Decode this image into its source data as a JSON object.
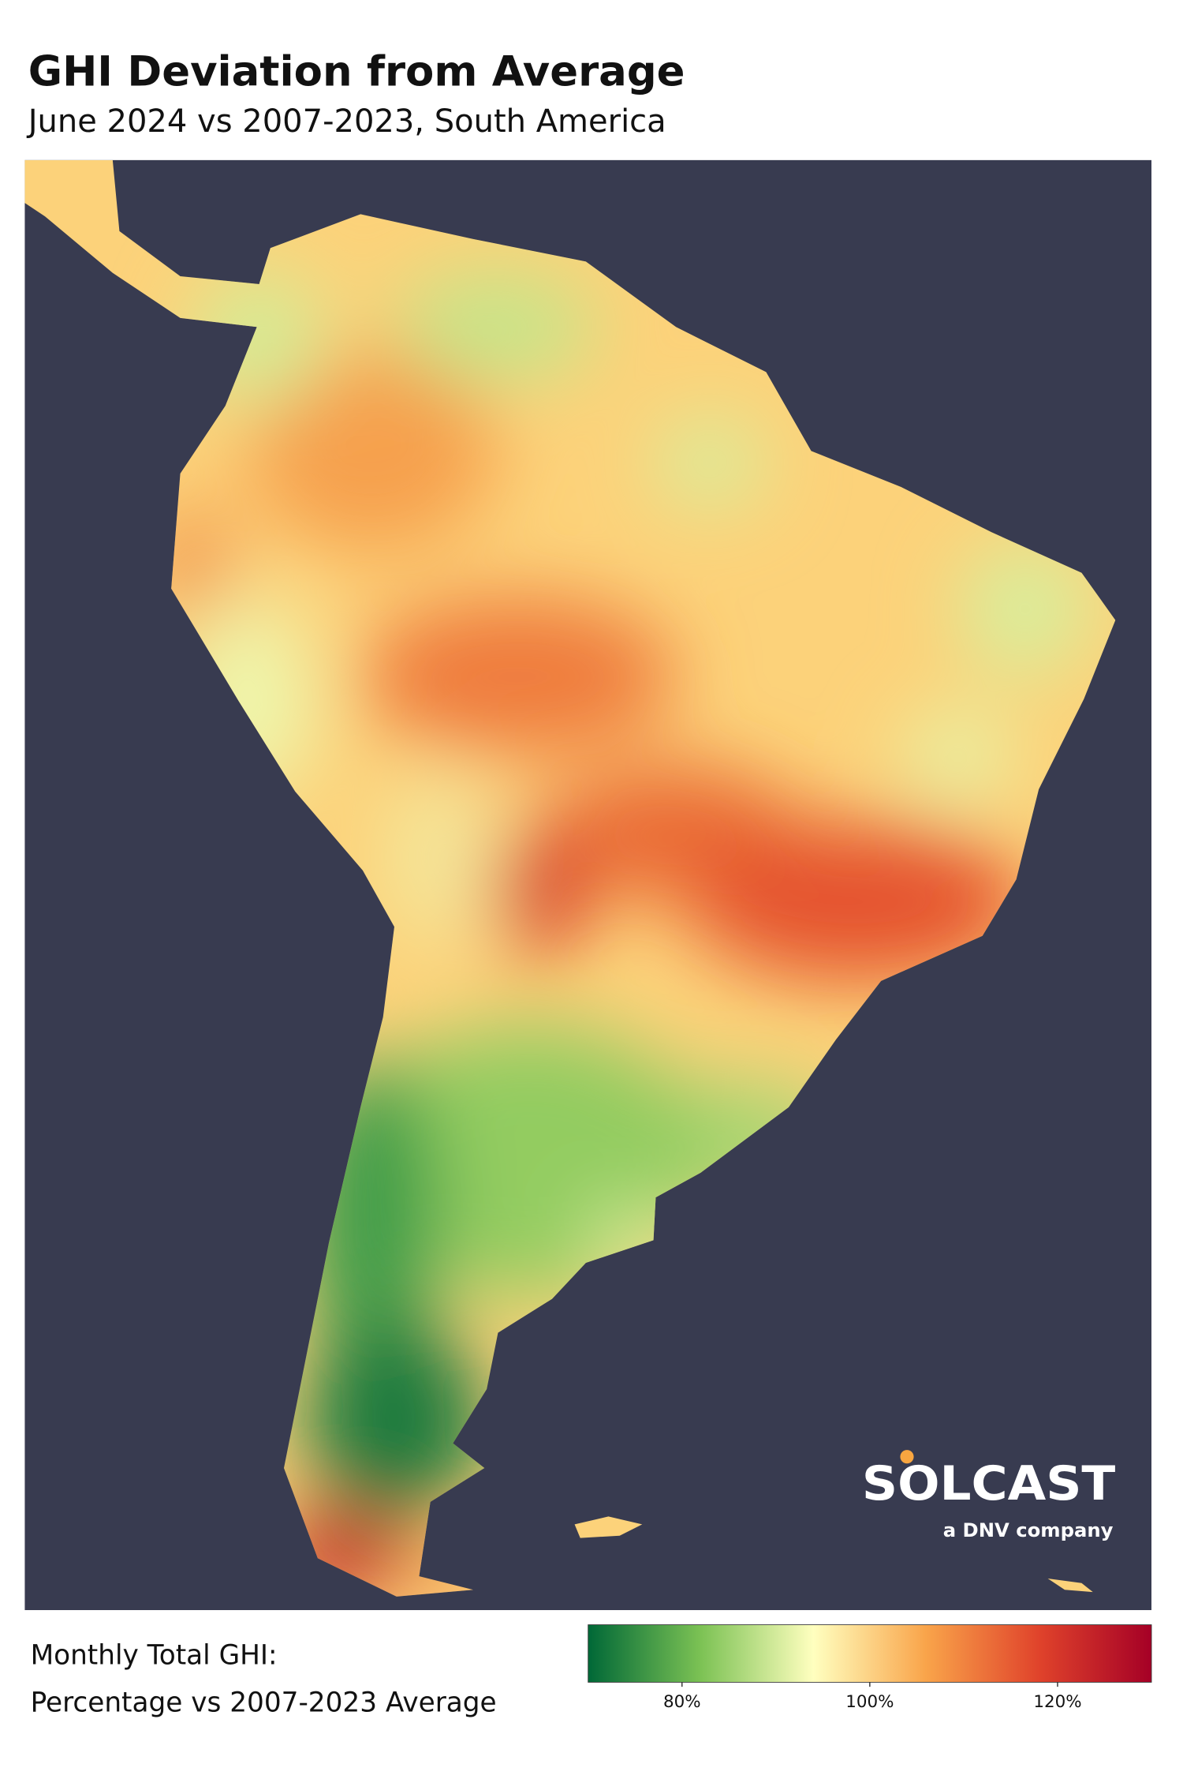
{
  "header": {
    "title": "GHI Deviation from Average",
    "subtitle": "June 2024 vs 2007-2023, South America"
  },
  "legend": {
    "label_lines": [
      "Monthly Total GHI:",
      "Percentage vs 2007-2023 Average"
    ],
    "range": [
      70,
      130
    ],
    "colors": [
      "#006837",
      "#7cc254",
      "#ffffbf",
      "#f9a44a",
      "#e0432b",
      "#a50026"
    ],
    "ticks": [
      {
        "value": 80,
        "label": "80%"
      },
      {
        "value": 100,
        "label": "100%"
      },
      {
        "value": 120,
        "label": "120%"
      }
    ]
  },
  "logo": {
    "name": "SOLCAST",
    "tagline": "a DNV company"
  }
}
